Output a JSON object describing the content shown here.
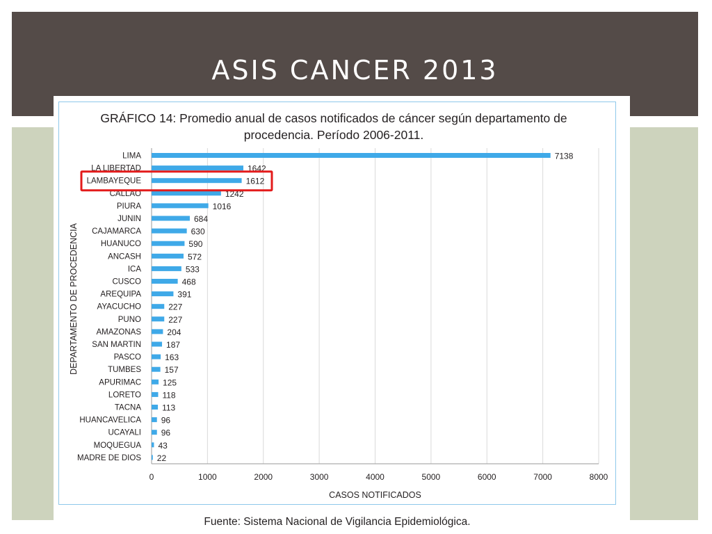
{
  "slide": {
    "title": "ASIS CANCER 2013"
  },
  "figure": {
    "source": "Fuente: Sistema Nacional de Vigilancia Epidemiológica.",
    "highlight_color": "#e31b1b",
    "bar_color": "#3fa9e8"
  },
  "chart_data": {
    "type": "bar",
    "orientation": "horizontal",
    "title": "GRÁFICO 14: Promedio anual de casos notificados de cáncer según departamento de procedencia. Período 2006-2011.",
    "xlabel": "CASOS NOTIFICADOS",
    "ylabel": "DEPARTAMENTO DE PROCEDENCIA",
    "xlim": [
      0,
      8000
    ],
    "xticks": [
      0,
      1000,
      2000,
      3000,
      4000,
      5000,
      6000,
      7000,
      8000
    ],
    "grid": "vertical",
    "categories": [
      "LIMA",
      "LA LIBERTAD",
      "LAMBAYEQUE",
      "CALLAO",
      "PIURA",
      "JUNIN",
      "CAJAMARCA",
      "HUANUCO",
      "ANCASH",
      "ICA",
      "CUSCO",
      "AREQUIPA",
      "AYACUCHO",
      "PUNO",
      "AMAZONAS",
      "SAN MARTIN",
      "PASCO",
      "TUMBES",
      "APURIMAC",
      "LORETO",
      "TACNA",
      "HUANCAVELICA",
      "UCAYALI",
      "MOQUEGUA",
      "MADRE DE DIOS"
    ],
    "values": [
      7138,
      1642,
      1612,
      1242,
      1016,
      684,
      630,
      590,
      572,
      533,
      468,
      391,
      227,
      227,
      204,
      187,
      163,
      157,
      125,
      118,
      113,
      96,
      96,
      43,
      22
    ],
    "highlighted": "LAMBAYEQUE"
  }
}
